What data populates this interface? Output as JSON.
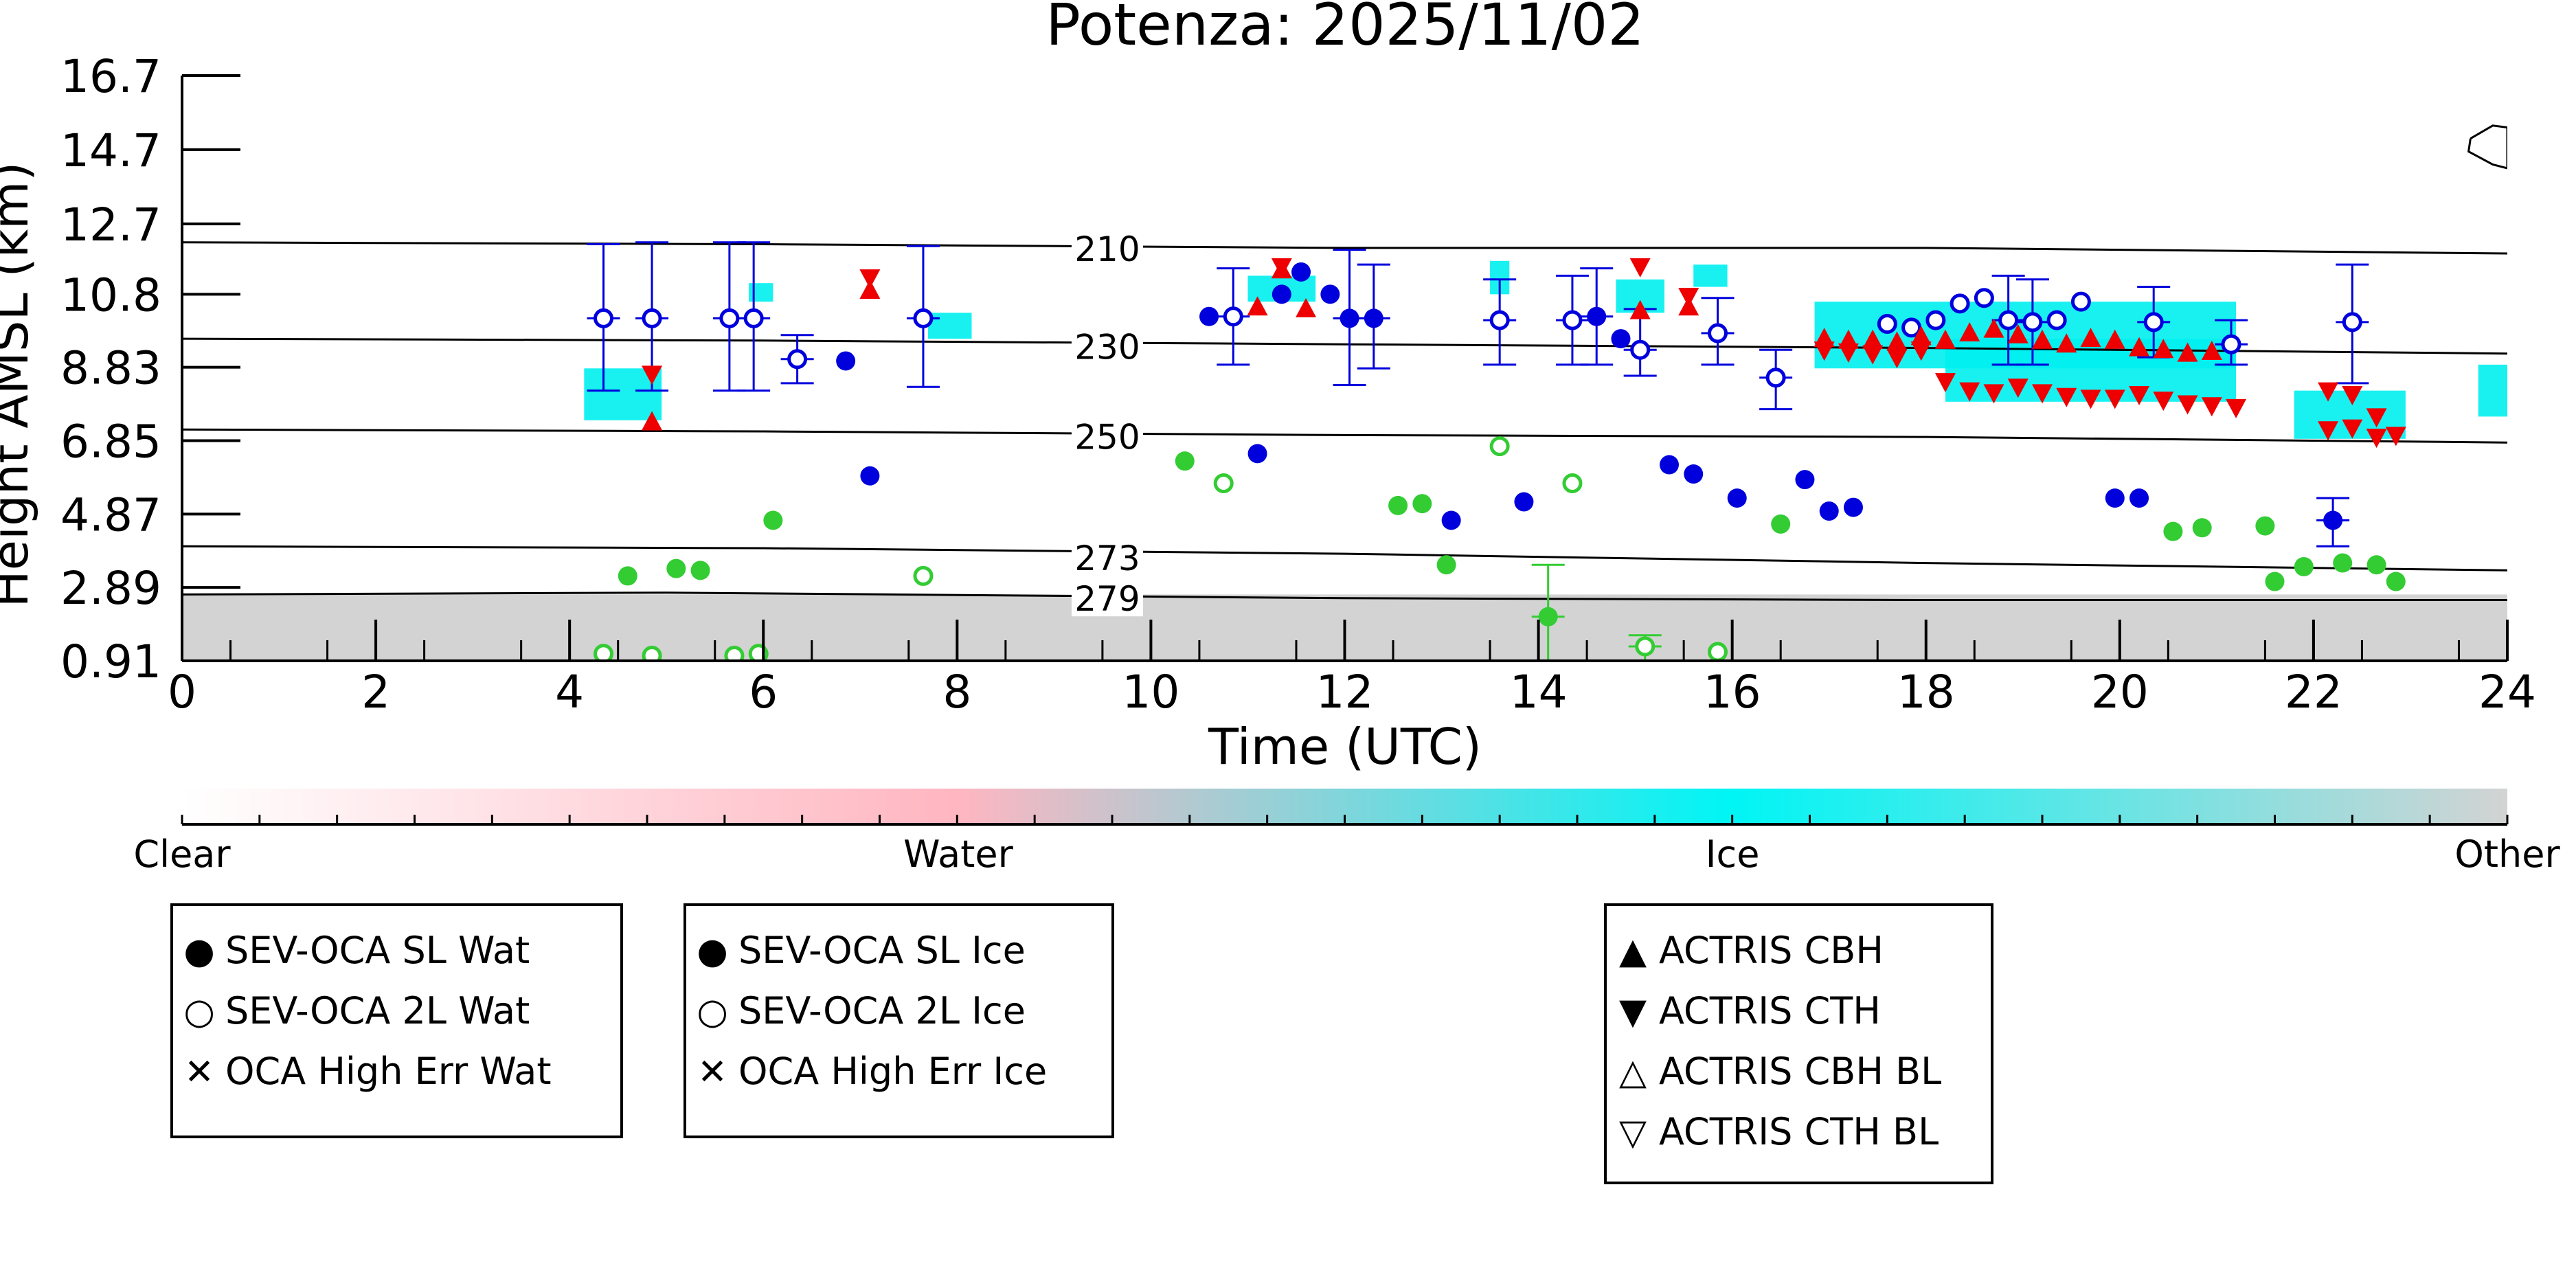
{
  "chart_data": {
    "type": "scatter",
    "title": "Potenza: 2025/11/02",
    "xlabel": "Time (UTC)",
    "ylabel": "Height AMSL (km)",
    "xlim": [
      0,
      24
    ],
    "ylim": [
      0.91,
      16.7
    ],
    "xticks": [
      0,
      2,
      4,
      6,
      8,
      10,
      12,
      14,
      16,
      18,
      20,
      22,
      24
    ],
    "yticks": [
      0.91,
      2.89,
      4.87,
      6.85,
      8.83,
      10.8,
      12.7,
      14.7,
      16.7
    ],
    "ytick_labels": [
      "0.91",
      "2.89",
      "4.87",
      "6.85",
      "8.83",
      "10.8",
      "12.7",
      "14.7",
      "16.7"
    ],
    "isotherms": [
      {
        "label": "210",
        "label_x": 9.55,
        "points": [
          [
            0,
            12.2
          ],
          [
            6,
            12.15
          ],
          [
            12,
            12.05
          ],
          [
            18,
            12.05
          ],
          [
            24,
            11.9
          ]
        ]
      },
      {
        "label": "230",
        "label_x": 9.55,
        "points": [
          [
            0,
            9.6
          ],
          [
            6,
            9.55
          ],
          [
            12,
            9.45
          ],
          [
            18,
            9.35
          ],
          [
            24,
            9.2
          ]
        ]
      },
      {
        "label": "250",
        "label_x": 9.55,
        "points": [
          [
            0,
            7.15
          ],
          [
            6,
            7.1
          ],
          [
            12,
            7.0
          ],
          [
            18,
            6.95
          ],
          [
            24,
            6.8
          ]
        ]
      },
      {
        "label": "273",
        "label_x": 9.55,
        "points": [
          [
            0,
            4.0
          ],
          [
            6,
            3.95
          ],
          [
            12,
            3.8
          ],
          [
            18,
            3.55
          ],
          [
            24,
            3.35
          ]
        ]
      },
      {
        "label": "279",
        "label_x": 9.55,
        "points": [
          [
            0,
            2.7
          ],
          [
            5,
            2.75
          ],
          [
            12,
            2.6
          ],
          [
            18,
            2.55
          ],
          [
            24,
            2.55
          ]
        ]
      }
    ],
    "upper_contour": [
      [
        23.62,
        15.0
      ],
      [
        23.85,
        15.35
      ],
      [
        24,
        15.3
      ],
      [
        24,
        14.2
      ],
      [
        23.85,
        14.3
      ],
      [
        23.6,
        14.65
      ],
      [
        23.62,
        15.0
      ]
    ],
    "series": [
      {
        "name": "SEV-OCA SL Wat",
        "color": "#33cc33",
        "marker": "filled-circle",
        "points": [
          [
            4.6,
            3.2
          ],
          [
            5.1,
            3.4
          ],
          [
            5.35,
            3.35
          ],
          [
            6.1,
            4.7
          ],
          [
            10.35,
            6.3
          ],
          [
            12.55,
            5.1
          ],
          [
            12.8,
            5.15
          ],
          [
            13.05,
            3.5
          ],
          [
            14.1,
            2.1
          ],
          [
            16.5,
            4.6
          ],
          [
            20.55,
            4.4
          ],
          [
            20.85,
            4.5
          ],
          [
            21.5,
            4.55
          ],
          [
            21.6,
            3.05
          ],
          [
            21.9,
            3.45
          ],
          [
            22.3,
            3.55
          ],
          [
            22.65,
            3.5
          ],
          [
            22.85,
            3.05
          ]
        ]
      },
      {
        "name": "SEV-OCA 2L Wat",
        "color": "#33cc33",
        "marker": "open-circle",
        "points": [
          [
            4.35,
            1.1
          ],
          [
            4.85,
            1.05
          ],
          [
            5.7,
            1.05
          ],
          [
            5.95,
            1.1
          ],
          [
            7.65,
            3.2
          ],
          [
            10.75,
            5.7
          ],
          [
            13.6,
            6.7
          ],
          [
            14.35,
            5.7
          ],
          [
            15.1,
            1.3
          ],
          [
            15.85,
            1.15
          ]
        ]
      },
      {
        "name": "OCA High Err Wat",
        "color": "#33cc33",
        "marker": "cross",
        "points": []
      },
      {
        "name": "SEV-OCA SL Ice",
        "color": "#0000dd",
        "marker": "filled-circle",
        "points": [
          [
            6.85,
            9.0
          ],
          [
            7.1,
            5.9
          ],
          [
            10.6,
            10.2
          ],
          [
            11.1,
            6.5
          ],
          [
            11.35,
            10.8
          ],
          [
            11.55,
            11.4
          ],
          [
            11.85,
            10.8
          ],
          [
            12.05,
            10.15
          ],
          [
            12.3,
            10.15
          ],
          [
            13.1,
            4.7
          ],
          [
            13.85,
            5.2
          ],
          [
            14.6,
            10.2
          ],
          [
            14.85,
            9.6
          ],
          [
            15.35,
            6.2
          ],
          [
            15.6,
            5.95
          ],
          [
            16.05,
            5.3
          ],
          [
            16.75,
            5.8
          ],
          [
            17.0,
            4.95
          ],
          [
            17.25,
            5.05
          ],
          [
            19.95,
            5.3
          ],
          [
            20.2,
            5.3
          ],
          [
            22.2,
            4.7
          ]
        ]
      },
      {
        "name": "SEV-OCA 2L Ice",
        "color": "#0000dd",
        "marker": "open-circle",
        "points": [
          [
            4.35,
            10.15
          ],
          [
            4.85,
            10.15
          ],
          [
            5.65,
            10.15
          ],
          [
            5.9,
            10.15
          ],
          [
            6.35,
            9.05
          ],
          [
            7.65,
            10.15
          ],
          [
            10.85,
            10.2
          ],
          [
            13.6,
            10.1
          ],
          [
            14.35,
            10.1
          ],
          [
            15.05,
            9.3
          ],
          [
            15.85,
            9.75
          ],
          [
            16.45,
            8.55
          ],
          [
            17.6,
            10.0
          ],
          [
            17.85,
            9.9
          ],
          [
            18.1,
            10.1
          ],
          [
            18.35,
            10.55
          ],
          [
            18.6,
            10.7
          ],
          [
            18.85,
            10.1
          ],
          [
            19.1,
            10.05
          ],
          [
            19.35,
            10.1
          ],
          [
            19.6,
            10.6
          ],
          [
            20.35,
            10.05
          ],
          [
            21.15,
            9.45
          ],
          [
            22.4,
            10.05
          ]
        ]
      },
      {
        "name": "OCA High Err Ice",
        "color": "#0000dd",
        "marker": "cross",
        "points": []
      },
      {
        "name": "ACTRIS CBH",
        "color": "#ee0000",
        "marker": "triangle-up",
        "points": [
          [
            4.85,
            7.35
          ],
          [
            7.1,
            10.9
          ],
          [
            11.1,
            10.45
          ],
          [
            11.35,
            11.45
          ],
          [
            11.6,
            10.4
          ],
          [
            15.05,
            10.35
          ],
          [
            15.55,
            10.45
          ],
          [
            16.95,
            9.6
          ],
          [
            17.2,
            9.55
          ],
          [
            17.45,
            9.55
          ],
          [
            17.7,
            9.5
          ],
          [
            17.95,
            9.65
          ],
          [
            18.2,
            9.55
          ],
          [
            18.45,
            9.75
          ],
          [
            18.7,
            9.85
          ],
          [
            18.95,
            9.7
          ],
          [
            19.2,
            9.55
          ],
          [
            19.45,
            9.45
          ],
          [
            19.7,
            9.6
          ],
          [
            19.95,
            9.55
          ],
          [
            20.2,
            9.35
          ],
          [
            20.45,
            9.3
          ],
          [
            20.7,
            9.2
          ],
          [
            20.95,
            9.25
          ]
        ]
      },
      {
        "name": "ACTRIS CTH",
        "color": "#ee0000",
        "marker": "triangle-down",
        "points": [
          [
            4.85,
            8.65
          ],
          [
            7.1,
            11.25
          ],
          [
            11.35,
            11.55
          ],
          [
            15.05,
            11.55
          ],
          [
            15.55,
            10.75
          ],
          [
            16.95,
            9.3
          ],
          [
            17.2,
            9.25
          ],
          [
            17.45,
            9.2
          ],
          [
            17.7,
            9.1
          ],
          [
            17.95,
            9.3
          ],
          [
            18.2,
            8.45
          ],
          [
            18.45,
            8.2
          ],
          [
            18.7,
            8.15
          ],
          [
            18.95,
            8.3
          ],
          [
            19.2,
            8.15
          ],
          [
            19.45,
            8.05
          ],
          [
            19.7,
            8.0
          ],
          [
            19.95,
            8.0
          ],
          [
            20.2,
            8.1
          ],
          [
            20.45,
            7.95
          ],
          [
            20.7,
            7.85
          ],
          [
            20.95,
            7.8
          ],
          [
            21.2,
            7.75
          ],
          [
            22.15,
            7.15
          ],
          [
            22.4,
            7.2
          ],
          [
            22.65,
            6.95
          ],
          [
            22.85,
            7.0
          ],
          [
            22.15,
            8.2
          ],
          [
            22.4,
            8.1
          ],
          [
            22.65,
            7.5
          ]
        ]
      },
      {
        "name": "ACTRIS CBH BL",
        "color": "#ee0000",
        "marker": "open-triangle-up",
        "points": []
      },
      {
        "name": "ACTRIS CTH BL",
        "color": "#ee0000",
        "marker": "open-triangle-down",
        "points": []
      }
    ],
    "error_bars": [
      {
        "x": 4.35,
        "y": 10.15,
        "lo": 8.2,
        "hi": 12.15,
        "color": "#0000dd"
      },
      {
        "x": 4.85,
        "y": 10.15,
        "lo": 8.2,
        "hi": 12.2,
        "color": "#0000dd"
      },
      {
        "x": 5.65,
        "y": 10.15,
        "lo": 8.2,
        "hi": 12.2,
        "color": "#0000dd"
      },
      {
        "x": 5.9,
        "y": 10.15,
        "lo": 8.2,
        "hi": 12.2,
        "color": "#0000dd"
      },
      {
        "x": 6.35,
        "y": 9.05,
        "lo": 8.4,
        "hi": 9.7,
        "color": "#0000dd"
      },
      {
        "x": 7.65,
        "y": 10.15,
        "lo": 8.3,
        "hi": 12.1,
        "color": "#0000dd"
      },
      {
        "x": 10.85,
        "y": 10.2,
        "lo": 8.9,
        "hi": 11.5,
        "color": "#0000dd"
      },
      {
        "x": 12.05,
        "y": 10.15,
        "lo": 8.35,
        "hi": 12.0,
        "color": "#0000dd"
      },
      {
        "x": 12.3,
        "y": 10.15,
        "lo": 8.8,
        "hi": 11.6,
        "color": "#0000dd"
      },
      {
        "x": 13.6,
        "y": 10.1,
        "lo": 8.9,
        "hi": 11.2,
        "color": "#0000dd"
      },
      {
        "x": 14.35,
        "y": 10.1,
        "lo": 8.9,
        "hi": 11.3,
        "color": "#0000dd"
      },
      {
        "x": 14.6,
        "y": 10.2,
        "lo": 8.9,
        "hi": 11.5,
        "color": "#0000dd"
      },
      {
        "x": 15.05,
        "y": 9.3,
        "lo": 8.6,
        "hi": 10.4,
        "color": "#0000dd"
      },
      {
        "x": 15.85,
        "y": 9.75,
        "lo": 8.9,
        "hi": 10.7,
        "color": "#0000dd"
      },
      {
        "x": 16.45,
        "y": 8.55,
        "lo": 7.7,
        "hi": 9.3,
        "color": "#0000dd"
      },
      {
        "x": 18.85,
        "y": 10.1,
        "lo": 8.9,
        "hi": 11.3,
        "color": "#0000dd"
      },
      {
        "x": 19.1,
        "y": 10.05,
        "lo": 8.9,
        "hi": 11.2,
        "color": "#0000dd"
      },
      {
        "x": 20.35,
        "y": 10.05,
        "lo": 9.1,
        "hi": 11.0,
        "color": "#0000dd"
      },
      {
        "x": 21.15,
        "y": 9.45,
        "lo": 8.9,
        "hi": 10.1,
        "color": "#0000dd"
      },
      {
        "x": 22.4,
        "y": 10.05,
        "lo": 8.4,
        "hi": 11.6,
        "color": "#0000dd"
      },
      {
        "x": 22.2,
        "y": 4.7,
        "lo": 4.0,
        "hi": 5.3,
        "color": "#0000dd"
      },
      {
        "x": 14.1,
        "y": 2.1,
        "lo": 0.91,
        "hi": 3.5,
        "color": "#33cc33"
      },
      {
        "x": 15.1,
        "y": 1.3,
        "lo": 0.91,
        "hi": 1.6,
        "color": "#33cc33"
      }
    ],
    "cloud_regions": [
      {
        "x0": 4.15,
        "x1": 4.95,
        "y0": 7.4,
        "y1": 8.8
      },
      {
        "x0": 5.85,
        "x1": 6.1,
        "y0": 10.6,
        "y1": 11.1
      },
      {
        "x0": 7.7,
        "x1": 8.15,
        "y0": 9.6,
        "y1": 10.3
      },
      {
        "x0": 11.0,
        "x1": 11.7,
        "y0": 10.6,
        "y1": 11.3
      },
      {
        "x0": 13.5,
        "x1": 13.7,
        "y0": 10.8,
        "y1": 11.7
      },
      {
        "x0": 14.8,
        "x1": 15.3,
        "y0": 10.3,
        "y1": 11.2
      },
      {
        "x0": 15.6,
        "x1": 15.95,
        "y0": 11.0,
        "y1": 11.6
      },
      {
        "x0": 16.85,
        "x1": 21.2,
        "y0": 8.8,
        "y1": 10.6
      },
      {
        "x0": 18.2,
        "x1": 21.2,
        "y0": 7.9,
        "y1": 9.6
      },
      {
        "x0": 21.8,
        "x1": 22.95,
        "y0": 6.9,
        "y1": 8.2
      },
      {
        "x0": 23.7,
        "x1": 24.0,
        "y0": 7.5,
        "y1": 8.9
      }
    ],
    "ground_clutter": {
      "y0": 0.91,
      "y1": 2.7
    },
    "colorbar": {
      "labels": [
        "Clear",
        "Water",
        "Ice",
        "Other"
      ],
      "stops": [
        {
          "pos": 0.0,
          "color": "#ffffff"
        },
        {
          "pos": 0.333,
          "color": "#ffb6c1"
        },
        {
          "pos": 0.666,
          "color": "#00f5f5"
        },
        {
          "pos": 1.0,
          "color": "#d3d3d3"
        }
      ]
    },
    "legend_groups": [
      {
        "entries": [
          {
            "symbol": "●",
            "label": "SEV-OCA SL Wat",
            "color": "#33cc33"
          },
          {
            "symbol": "○",
            "label": "SEV-OCA 2L Wat",
            "color": "#33cc33"
          },
          {
            "symbol": "✕",
            "label": "OCA High Err Wat",
            "color": "#33cc33"
          }
        ]
      },
      {
        "entries": [
          {
            "symbol": "●",
            "label": "SEV-OCA SL Ice",
            "color": "#0000dd"
          },
          {
            "symbol": "○",
            "label": "SEV-OCA 2L Ice",
            "color": "#0000dd"
          },
          {
            "symbol": "✕",
            "label": "OCA High Err Ice",
            "color": "#0000dd"
          }
        ]
      },
      {
        "entries": [
          {
            "symbol": "▲",
            "label": "ACTRIS CBH",
            "color": "#ee0000"
          },
          {
            "symbol": "▼",
            "label": "ACTRIS CTH",
            "color": "#ee0000"
          },
          {
            "symbol": "△",
            "label": "ACTRIS CBH BL",
            "color": "#ee0000"
          },
          {
            "symbol": "▽",
            "label": "ACTRIS CTH BL",
            "color": "#ee0000"
          }
        ]
      }
    ]
  }
}
